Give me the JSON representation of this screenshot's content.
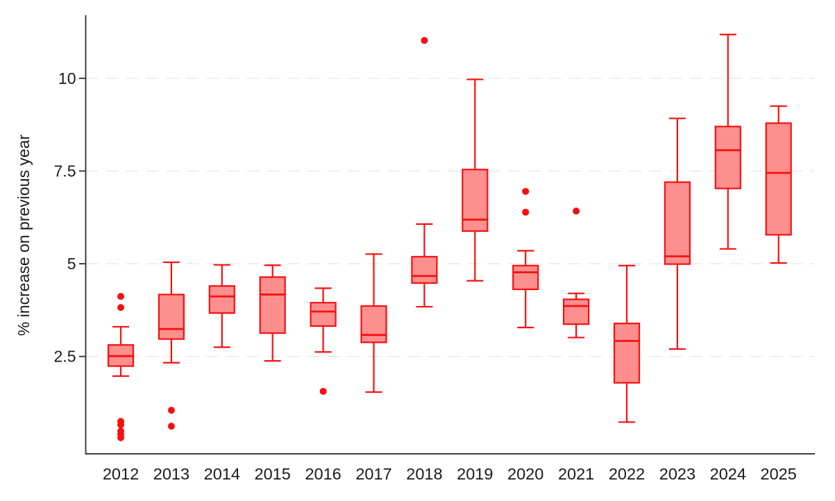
{
  "chart_data": {
    "type": "boxplot",
    "title": "",
    "xlabel": "",
    "ylabel": "% increase on previous year",
    "categories": [
      "2012",
      "2013",
      "2014",
      "2015",
      "2016",
      "2017",
      "2018",
      "2019",
      "2020",
      "2021",
      "2022",
      "2023",
      "2024",
      "2025"
    ],
    "y_ticks": [
      2.5,
      5,
      7.5,
      10
    ],
    "y_tick_labels": [
      "2.5",
      "5",
      "7.5",
      "10"
    ],
    "ylim": [
      -0.1,
      11.8
    ],
    "grid": "horizontal dashed gridlines at each y tick",
    "legend": "none",
    "series": [
      {
        "year": "2012",
        "whisker_low": 1.97,
        "q1": 2.24,
        "median": 2.51,
        "q3": 2.81,
        "whisker_high": 3.3,
        "outliers": [
          4.12,
          3.82,
          0.75,
          0.66,
          0.49,
          0.4,
          0.31
        ]
      },
      {
        "year": "2013",
        "whisker_low": 2.33,
        "q1": 2.97,
        "median": 3.24,
        "q3": 4.17,
        "whisker_high": 5.04,
        "outliers": [
          1.05,
          0.62
        ]
      },
      {
        "year": "2014",
        "whisker_low": 2.75,
        "q1": 3.67,
        "median": 4.12,
        "q3": 4.4,
        "whisker_high": 4.97,
        "outliers": []
      },
      {
        "year": "2015",
        "whisker_low": 2.38,
        "q1": 3.13,
        "median": 4.17,
        "q3": 4.64,
        "whisker_high": 4.96,
        "outliers": []
      },
      {
        "year": "2016",
        "whisker_low": 2.62,
        "q1": 3.32,
        "median": 3.71,
        "q3": 3.95,
        "whisker_high": 4.34,
        "outliers": [
          1.56
        ]
      },
      {
        "year": "2017",
        "whisker_low": 1.54,
        "q1": 2.88,
        "median": 3.08,
        "q3": 3.86,
        "whisker_high": 5.26,
        "outliers": []
      },
      {
        "year": "2018",
        "whisker_low": 3.84,
        "q1": 4.48,
        "median": 4.67,
        "q3": 5.19,
        "whisker_high": 6.07,
        "outliers": [
          11.02
        ]
      },
      {
        "year": "2019",
        "whisker_low": 4.54,
        "q1": 5.88,
        "median": 6.19,
        "q3": 7.54,
        "whisker_high": 9.97,
        "outliers": []
      },
      {
        "year": "2020",
        "whisker_low": 3.28,
        "q1": 4.31,
        "median": 4.77,
        "q3": 4.95,
        "whisker_high": 5.35,
        "outliers": [
          6.95,
          6.39
        ]
      },
      {
        "year": "2021",
        "whisker_low": 3.01,
        "q1": 3.37,
        "median": 3.86,
        "q3": 4.04,
        "whisker_high": 4.2,
        "outliers": [
          6.42
        ]
      },
      {
        "year": "2022",
        "whisker_low": 0.73,
        "q1": 1.79,
        "median": 2.92,
        "q3": 3.39,
        "whisker_high": 4.95,
        "outliers": []
      },
      {
        "year": "2023",
        "whisker_low": 2.7,
        "q1": 4.99,
        "median": 5.2,
        "q3": 7.2,
        "whisker_high": 8.92,
        "outliers": []
      },
      {
        "year": "2024",
        "whisker_low": 5.4,
        "q1": 7.03,
        "median": 8.06,
        "q3": 8.7,
        "whisker_high": 11.18,
        "outliers": []
      },
      {
        "year": "2025",
        "whisker_low": 5.02,
        "q1": 5.78,
        "median": 7.45,
        "q3": 8.79,
        "whisker_high": 9.25,
        "outliers": []
      }
    ],
    "colors": {
      "box_fill": "#fd8f8f",
      "box_stroke": "#f90f0f",
      "outlier": "#f90f0f",
      "axis": "#3d3d3d",
      "gridline": "#e7e7e7",
      "text": "#1a1a1a"
    }
  }
}
